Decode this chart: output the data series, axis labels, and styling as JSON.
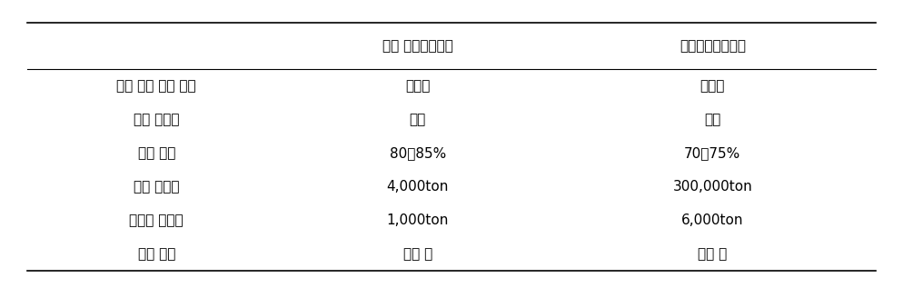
{
  "col_headers": [
    "",
    "충북 원예협동조합",
    "경북능금협동조합"
  ],
  "rows": [
    [
      "사과 주스 착즘 과정",
      "압착식",
      "압착식"
    ],
    [
      "중간 열처리",
      "있음",
      "없음"
    ],
    [
      "수분 함량",
      "80～85%",
      "70～75%"
    ],
    [
      "사과 처리량",
      "4,000ton",
      "300,000ton"
    ],
    [
      "사과박 생산량",
      "1,000ton",
      "6,000ton"
    ],
    [
      "사과 품종",
      "홍로 외",
      "부사 외"
    ]
  ],
  "figsize": [
    9.94,
    3.17
  ],
  "dpi": 100,
  "font_size": 11,
  "header_font_size": 11,
  "bg_color": "#ffffff",
  "line_color": "#000000",
  "text_color": "#000000"
}
